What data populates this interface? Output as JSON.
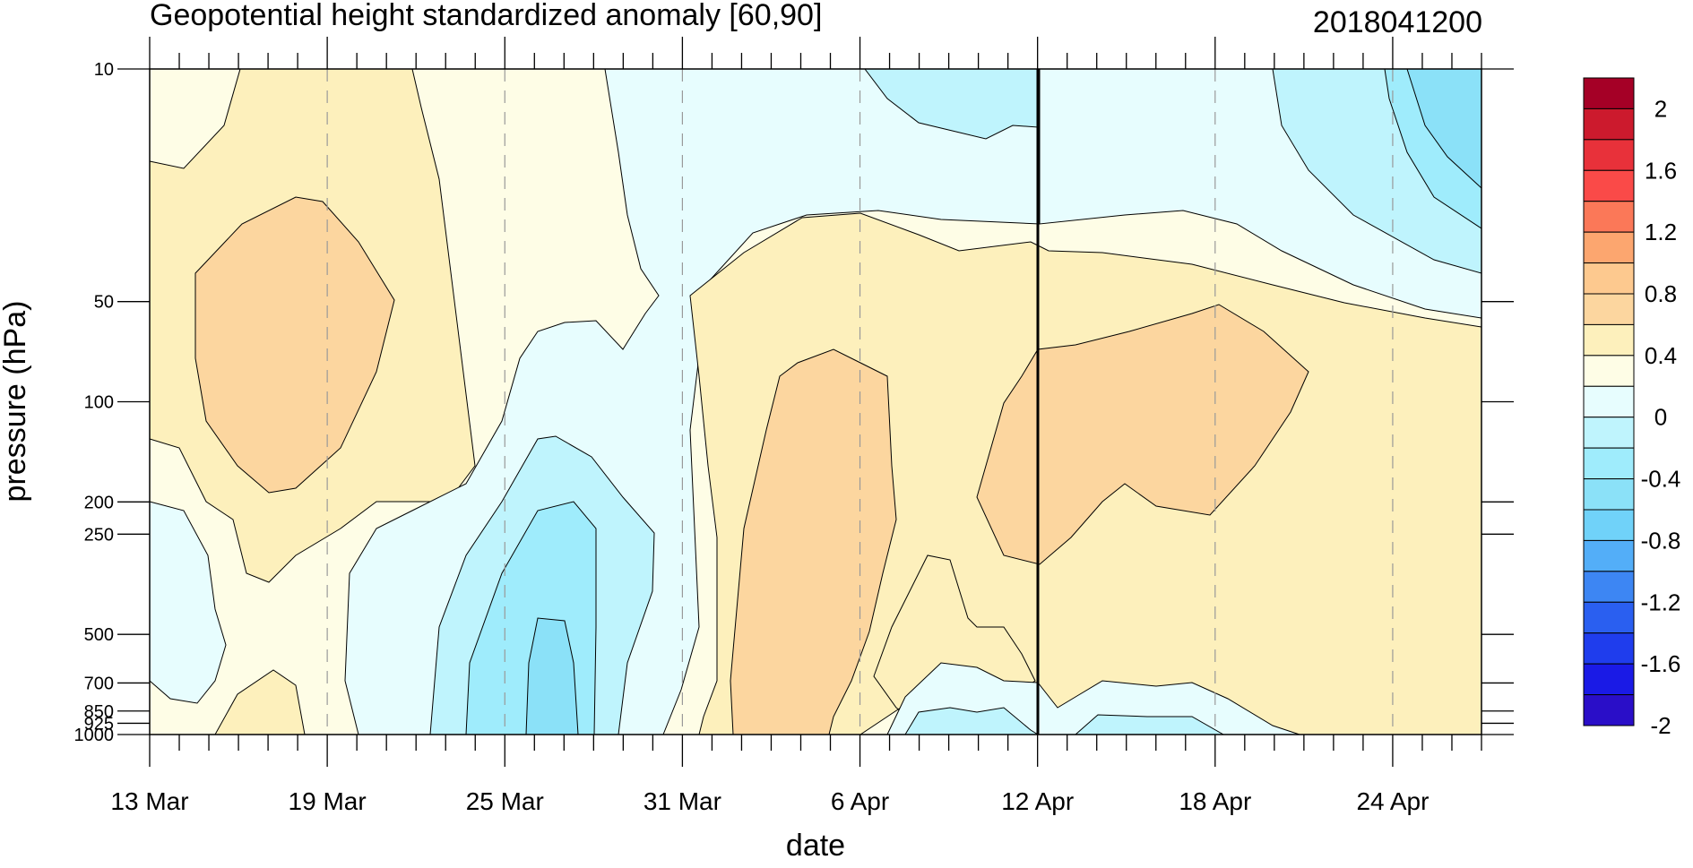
{
  "chart_data": {
    "type": "heatmap",
    "title": "Geopotential height standardized anomaly [60,90]",
    "subtitle_right": "2018041200",
    "xlabel": "date",
    "ylabel": "pressure (hPa)",
    "x_tick_labels": [
      "13 Mar",
      "19 Mar",
      "25 Mar",
      "31 Mar",
      "6 Apr",
      "12 Apr",
      "18 Apr",
      "24 Apr"
    ],
    "x_range": [
      "2018-03-13",
      "2018-04-27"
    ],
    "y_scale": "log",
    "y_reversed": true,
    "y_ticks": [
      10,
      50,
      100,
      200,
      250,
      500,
      700,
      850,
      925,
      1000
    ],
    "y_range": [
      10,
      1000
    ],
    "analysis_time_marker": "12 Apr",
    "grid": "dashed vertical lines at labeled dates",
    "colorbar": {
      "labels": [
        "2",
        "1.6",
        "1.2",
        "0.8",
        "0.4",
        "0",
        "-0.4",
        "-0.8",
        "-1.2",
        "-1.6",
        "-2"
      ],
      "colors_top_to_bottom": [
        "#a50026",
        "#cc1a2d",
        "#e8313a",
        "#fa4a48",
        "#fb7858",
        "#fca66f",
        "#fdc98f",
        "#fcd69f",
        "#fdf0bc",
        "#fefde6",
        "#e7fdfe",
        "#bff4fd",
        "#9fecfc",
        "#8be1f8",
        "#70d2f9",
        "#53aef8",
        "#3d86f3",
        "#2a5ff0",
        "#1f3ded",
        "#1a1ae6",
        "#2a0ec8"
      ]
    },
    "contour_levels": [
      -2,
      -1.8,
      -1.6,
      -1.4,
      -1.2,
      -1.0,
      -0.8,
      -0.6,
      -0.4,
      -0.2,
      0,
      0.2,
      0.4,
      0.6,
      0.8,
      1.0,
      1.2,
      1.4,
      1.6,
      1.8,
      2
    ],
    "regions": [
      {
        "date": "2018-03-18",
        "pressure": 100,
        "value": 0.5
      },
      {
        "date": "2018-03-27",
        "pressure": 500,
        "value": -0.9
      },
      {
        "date": "2018-04-05",
        "pressure": 250,
        "value": 0.5
      },
      {
        "date": "2018-04-16",
        "pressure": 150,
        "value": 0.5
      },
      {
        "date": "2018-04-24",
        "pressure": 20,
        "value": -0.7
      },
      {
        "date": "2018-04-11",
        "pressure": 10,
        "value": -0.4
      },
      {
        "date": "2018-04-12",
        "pressure": 940,
        "value": -0.3
      }
    ]
  }
}
